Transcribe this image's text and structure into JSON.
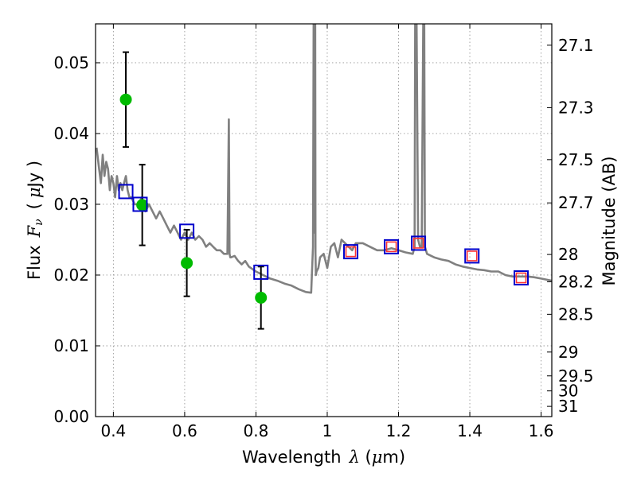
{
  "chart_data": {
    "type": "scatter",
    "xlabel": "Wavelength",
    "xlabel_math": "λ",
    "xlabel_unit_open": " (",
    "xlabel_unit_mu": "μ",
    "xlabel_unit_close": "m)",
    "ylabel": "Flux",
    "ylabel_math": "F",
    "ylabel_sub": "ν",
    "ylabel_unit_open": "(",
    "ylabel_unit_mu": "μ",
    "ylabel_unit_close": "Jy )",
    "ylabel_right": "Magnitude (AB)",
    "xlim": [
      0.35,
      1.63
    ],
    "ylim": [
      0.0,
      0.0555
    ],
    "grid": true,
    "x_ticks": [
      0.4,
      0.6,
      0.8,
      1.0,
      1.2,
      1.4,
      1.6
    ],
    "x_tick_labels": [
      "0.4",
      "0.6",
      "0.8",
      "1",
      "1.2",
      "1.4",
      "1.6"
    ],
    "y_ticks": [
      0.0,
      0.01,
      0.02,
      0.03,
      0.04,
      0.05
    ],
    "y_tick_labels": [
      "0.00",
      "0.01",
      "0.02",
      "0.03",
      "0.04",
      "0.05"
    ],
    "right_ticks": [
      27.1,
      27.3,
      27.5,
      27.7,
      28,
      28.2,
      28.5,
      29,
      29.5,
      30,
      31
    ],
    "right_tick_labels": [
      "27.1",
      "27.3",
      "27.5",
      "27.7",
      "28",
      "28.2",
      "28.5",
      "29",
      "29.5",
      "30",
      "31"
    ],
    "colors": {
      "model": "#808080",
      "observed": "#00bb00",
      "synthetic_box": "#0000cc",
      "nir_inner": "#ff3333",
      "errorbar": "#000000",
      "grid": "#999999"
    },
    "series": [
      {
        "name": "model_sed",
        "kind": "line",
        "x": [
          0.353,
          0.36,
          0.365,
          0.37,
          0.375,
          0.38,
          0.385,
          0.39,
          0.395,
          0.4,
          0.405,
          0.41,
          0.415,
          0.42,
          0.425,
          0.43,
          0.435,
          0.44,
          0.445,
          0.45,
          0.46,
          0.47,
          0.48,
          0.49,
          0.5,
          0.51,
          0.52,
          0.53,
          0.54,
          0.55,
          0.56,
          0.57,
          0.58,
          0.59,
          0.6,
          0.61,
          0.62,
          0.63,
          0.64,
          0.65,
          0.66,
          0.67,
          0.68,
          0.69,
          0.7,
          0.71,
          0.72,
          0.724,
          0.726,
          0.728,
          0.73,
          0.74,
          0.75,
          0.76,
          0.77,
          0.78,
          0.8,
          0.82,
          0.84,
          0.86,
          0.88,
          0.9,
          0.92,
          0.94,
          0.955,
          0.96,
          0.962,
          0.963,
          0.964,
          0.965,
          0.966,
          0.967,
          0.968,
          0.97,
          0.975,
          0.98,
          0.99,
          1.0,
          1.01,
          1.02,
          1.03,
          1.04,
          1.05,
          1.06,
          1.07,
          1.08,
          1.1,
          1.12,
          1.14,
          1.16,
          1.18,
          1.2,
          1.22,
          1.24,
          1.245,
          1.247,
          1.25,
          1.255,
          1.26,
          1.265,
          1.27,
          1.272,
          1.274,
          1.28,
          1.3,
          1.32,
          1.34,
          1.36,
          1.38,
          1.4,
          1.42,
          1.44,
          1.46,
          1.48,
          1.5,
          1.52,
          1.54,
          1.56,
          1.58,
          1.6,
          1.63
        ],
        "y": [
          0.038,
          0.035,
          0.033,
          0.037,
          0.034,
          0.036,
          0.035,
          0.032,
          0.034,
          0.033,
          0.031,
          0.034,
          0.032,
          0.033,
          0.032,
          0.033,
          0.034,
          0.032,
          0.031,
          0.031,
          0.03,
          0.03,
          0.031,
          0.029,
          0.03,
          0.029,
          0.028,
          0.029,
          0.028,
          0.027,
          0.026,
          0.027,
          0.026,
          0.025,
          0.026,
          0.025,
          0.026,
          0.025,
          0.0255,
          0.025,
          0.024,
          0.0245,
          0.024,
          0.0235,
          0.0235,
          0.023,
          0.023,
          0.042,
          0.023,
          0.0225,
          0.0225,
          0.0227,
          0.022,
          0.0215,
          0.022,
          0.0212,
          0.0205,
          0.02,
          0.0195,
          0.0192,
          0.0188,
          0.0185,
          0.018,
          0.0176,
          0.0175,
          0.024,
          0.06,
          0.06,
          0.026,
          0.06,
          0.06,
          0.023,
          0.02,
          0.0205,
          0.021,
          0.0225,
          0.023,
          0.021,
          0.024,
          0.0245,
          0.0225,
          0.025,
          0.0245,
          0.024,
          0.0235,
          0.0245,
          0.0245,
          0.024,
          0.0235,
          0.0235,
          0.0238,
          0.0235,
          0.0232,
          0.023,
          0.024,
          0.06,
          0.06,
          0.025,
          0.024,
          0.024,
          0.06,
          0.06,
          0.024,
          0.023,
          0.0225,
          0.0222,
          0.022,
          0.0215,
          0.0212,
          0.021,
          0.0208,
          0.0207,
          0.0205,
          0.0205,
          0.02,
          0.0198,
          0.0198,
          0.0198,
          0.0197,
          0.0195,
          0.0192
        ]
      },
      {
        "name": "observed_flux",
        "kind": "points_with_errors",
        "x": [
          0.435,
          0.481,
          0.606,
          0.814
        ],
        "y": [
          0.0448,
          0.0299,
          0.0217,
          0.0168
        ],
        "yerr": [
          0.0067,
          0.0057,
          0.0047,
          0.0044
        ]
      },
      {
        "name": "synthetic_optical",
        "kind": "boxes",
        "x": [
          0.435,
          0.475,
          0.606,
          0.814
        ],
        "y": [
          0.0318,
          0.03,
          0.0262,
          0.0204
        ]
      },
      {
        "name": "synthetic_nir",
        "kind": "boxes_with_inner",
        "x": [
          1.066,
          1.18,
          1.256,
          1.406,
          1.544
        ],
        "y": [
          0.0233,
          0.024,
          0.0245,
          0.0227,
          0.0196
        ]
      }
    ]
  }
}
